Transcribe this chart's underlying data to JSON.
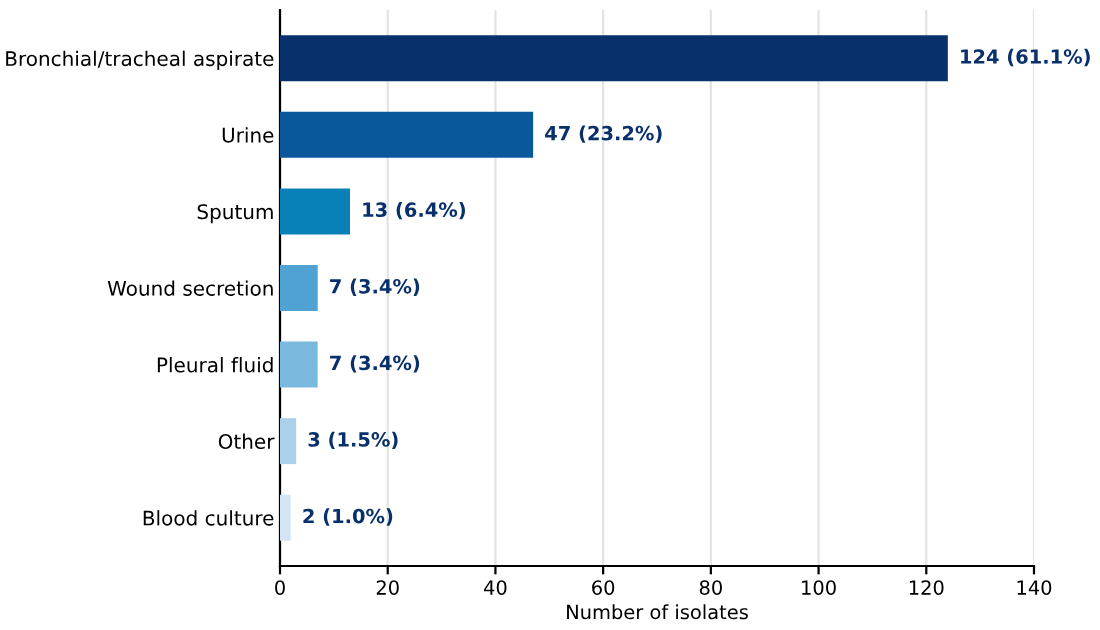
{
  "chart_data": {
    "type": "bar",
    "orientation": "horizontal",
    "xlabel": "Number of isolates",
    "categories": [
      "Bronchial/tracheal aspirate",
      "Urine",
      "Sputum",
      "Wound secretion",
      "Pleural fluid",
      "Other",
      "Blood culture"
    ],
    "values": [
      124,
      47,
      13,
      7,
      7,
      3,
      2
    ],
    "colors": [
      "#08306b",
      "#08589b",
      "#0a80b8",
      "#4ea3d3",
      "#7ab9de",
      "#abd0ec",
      "#d3e5f4"
    ],
    "value_labels": [
      "124 (61.1%)",
      "47 (23.2%)",
      "13 (6.4%)",
      "7 (3.4%)",
      "7 (3.4%)",
      "3 (1.5%)",
      "2 (1.0%)"
    ],
    "xlim": [
      0,
      140
    ],
    "xticks": [
      0,
      20,
      40,
      60,
      80,
      100,
      120,
      140
    ],
    "grid": "x"
  }
}
